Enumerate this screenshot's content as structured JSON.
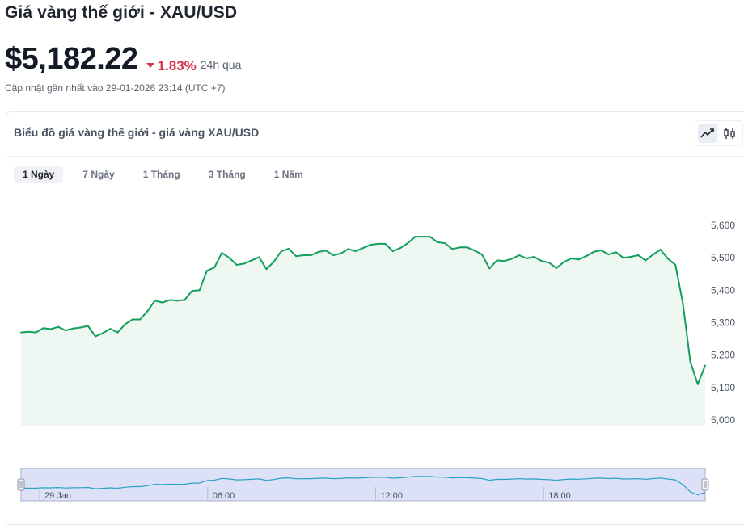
{
  "page": {
    "title": "Giá vàng thế giới - XAU/USD",
    "price": "$5,182.22",
    "change": "1.83%",
    "change_period": "24h qua",
    "updated": "Cập nhật gần nhất vào 29-01-2026 23:14 (UTC +7)"
  },
  "card": {
    "title": "Biểu đồ giá vàng thế giới - giá vàng XAU/USD",
    "tabs": [
      "1 Ngày",
      "7 Ngày",
      "1 Tháng",
      "3 Tháng",
      "1 Năm"
    ],
    "active_tab": "1 Ngày"
  },
  "tools": [
    {
      "name": "line-chart-icon",
      "active": true
    },
    {
      "name": "candlestick-icon",
      "active": false
    }
  ],
  "colors": {
    "line": "#13a05c",
    "area": "#eef7f1",
    "down": "#d9314e",
    "navigator_fill": "#dde1f7"
  },
  "chart_data": {
    "type": "area",
    "title": "",
    "xlabel": "",
    "ylabel": "",
    "ylim": [
      5000,
      5600
    ],
    "yticks": [
      "5,000",
      "5,100",
      "5,200",
      "5,300",
      "5,400",
      "5,500",
      "5,600"
    ],
    "navigator_ticks": [
      "29 Jan",
      "06:00",
      "12:00",
      "18:00"
    ],
    "grid": false,
    "legend": "none",
    "series": [
      {
        "values": [
          5270,
          5272,
          5270,
          5283,
          5280,
          5287,
          5276,
          5282,
          5285,
          5290,
          5258,
          5268,
          5281,
          5270,
          5295,
          5310,
          5310,
          5335,
          5368,
          5362,
          5370,
          5368,
          5370,
          5398,
          5400,
          5460,
          5470,
          5515,
          5500,
          5478,
          5482,
          5492,
          5502,
          5465,
          5488,
          5520,
          5528,
          5505,
          5508,
          5508,
          5518,
          5522,
          5508,
          5513,
          5527,
          5520,
          5530,
          5540,
          5543,
          5543,
          5520,
          5530,
          5545,
          5565,
          5565,
          5565,
          5548,
          5545,
          5527,
          5532,
          5532,
          5522,
          5510,
          5467,
          5492,
          5490,
          5497,
          5508,
          5498,
          5503,
          5490,
          5485,
          5468,
          5487,
          5498,
          5495,
          5505,
          5518,
          5523,
          5510,
          5517,
          5500,
          5503,
          5508,
          5492,
          5510,
          5525,
          5497,
          5478,
          5360,
          5180,
          5110,
          5168
        ]
      }
    ]
  }
}
